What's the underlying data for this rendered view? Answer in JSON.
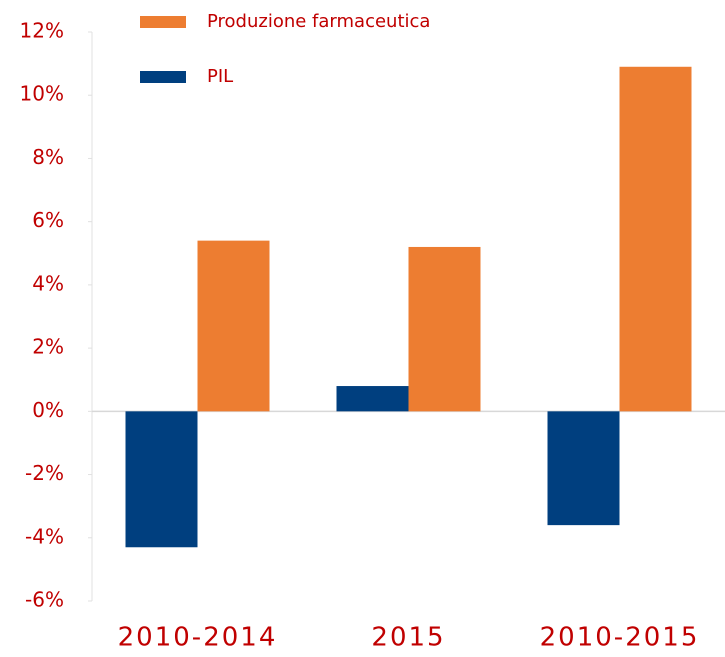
{
  "chart_data": {
    "type": "bar",
    "categories": [
      "2010-2014",
      "2015",
      "2010-2015"
    ],
    "series": [
      {
        "name": "PIL",
        "color": "#003f7f",
        "values": [
          -4.3,
          0.8,
          -3.6
        ]
      },
      {
        "name": "Produzione farmaceutica",
        "color": "#ed7d31",
        "values": [
          5.4,
          5.2,
          10.9
        ]
      }
    ],
    "ylim": [
      -6,
      12
    ],
    "yticks": [
      {
        "value": -6,
        "label": "-6%"
      },
      {
        "value": -4,
        "label": "-4%"
      },
      {
        "value": -2,
        "label": "-2%"
      },
      {
        "value": 0,
        "label": "0%"
      },
      {
        "value": 2,
        "label": "2%"
      },
      {
        "value": 4,
        "label": "4%"
      },
      {
        "value": 6,
        "label": "6%"
      },
      {
        "value": 8,
        "label": "8%"
      },
      {
        "value": 10,
        "label": "10%"
      },
      {
        "value": 12,
        "label": "12%"
      }
    ]
  }
}
